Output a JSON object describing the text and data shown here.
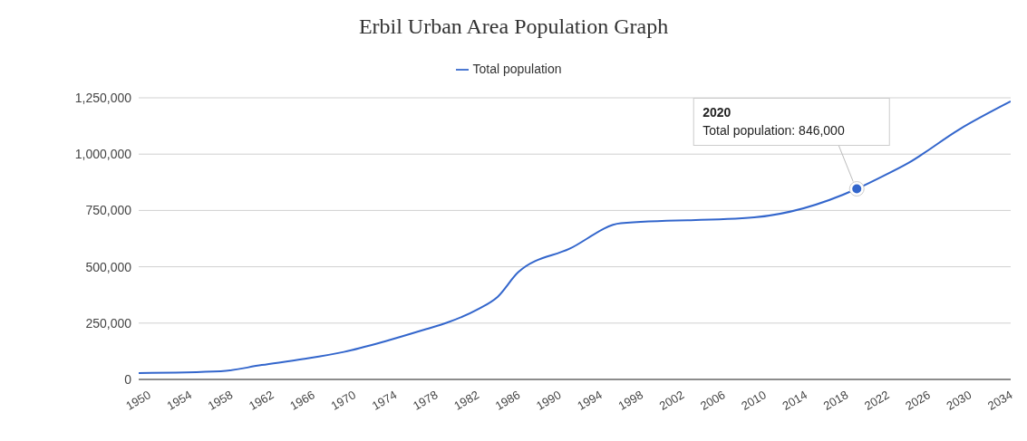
{
  "chart_data": {
    "type": "line",
    "title": "Erbil Urban Area Population Graph",
    "x": [
      1950,
      1958,
      1962,
      1966,
      1970,
      1974,
      1978,
      1980,
      1983,
      1985,
      1987,
      1992,
      1997,
      2010,
      2020,
      2022,
      2025,
      2030,
      2035
    ],
    "series": [
      {
        "name": "Total population",
        "color": "#3366cc",
        "values": [
          28000,
          36000,
          64000,
          90000,
          122000,
          169000,
          223000,
          251000,
          310000,
          367000,
          476000,
          580000,
          693000,
          719000,
          846000,
          890000,
          960000,
          1110000,
          1234000
        ]
      }
    ],
    "xlim": [
      1950,
      2035
    ],
    "xticks": [
      1950,
      1954,
      1958,
      1962,
      1966,
      1970,
      1974,
      1978,
      1982,
      1986,
      1990,
      1994,
      1998,
      2002,
      2006,
      2010,
      2014,
      2018,
      2022,
      2026,
      2030,
      2034
    ],
    "ylim": [
      0,
      1250000
    ],
    "yticks": [
      {
        "value": 0,
        "label": "0"
      },
      {
        "value": 250000,
        "label": "250,000"
      },
      {
        "value": 500000,
        "label": "500,000"
      },
      {
        "value": 750000,
        "label": "750,000"
      },
      {
        "value": 1000000,
        "label": "1,000,000"
      },
      {
        "value": 1250000,
        "label": "1,250,000"
      }
    ],
    "grid": "y",
    "legend": "top",
    "marker": "none",
    "line_style": "solid",
    "annotations": [
      {
        "text": "2020\nTotal population: 846,000",
        "x": 2020,
        "y": 846000
      }
    ]
  }
}
